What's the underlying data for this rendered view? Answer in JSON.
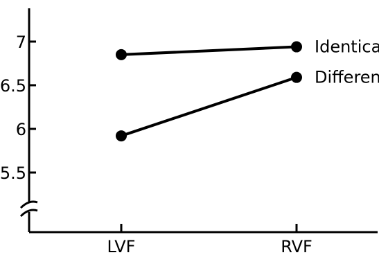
{
  "chart_data": {
    "type": "line",
    "categories": [
      "LVF",
      "RVF"
    ],
    "series": [
      {
        "name": "Identical",
        "values": [
          6.85,
          6.94
        ]
      },
      {
        "name": "Different",
        "values": [
          5.92,
          6.59
        ]
      }
    ],
    "yticks": [
      "5.5",
      "6",
      "6.5",
      "7"
    ],
    "ytick_values": [
      5.5,
      6,
      6.5,
      7
    ],
    "ylim": [
      5.0,
      7.35
    ],
    "axis_break": true,
    "grid": false,
    "legend": "inline-right"
  }
}
